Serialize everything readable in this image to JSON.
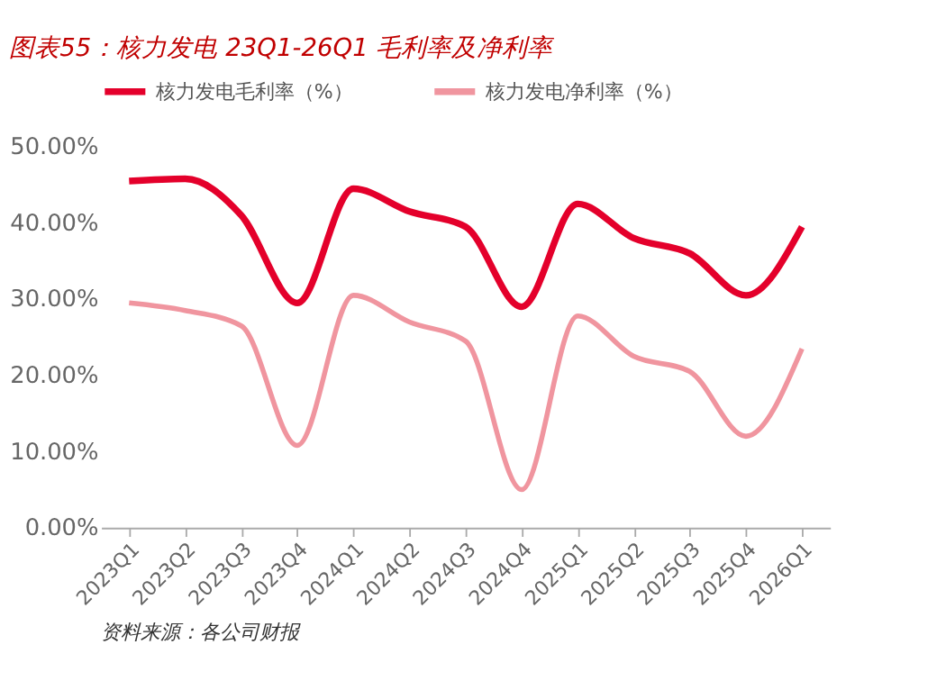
{
  "chart_data": {
    "type": "line",
    "title": "图表55：核力发电 23Q1-26Q1 毛利率及净利率",
    "categories": [
      "2023Q1",
      "2023Q2",
      "2023Q3",
      "2023Q4",
      "2024Q1",
      "2024Q2",
      "2024Q3",
      "2024Q4",
      "2025Q1",
      "2025Q2",
      "2025Q3",
      "2025Q4",
      "2026Q1"
    ],
    "series": [
      {
        "name": "核力发电毛利率（%）",
        "color": "#e4002b",
        "values": [
          45.5,
          45.8,
          41,
          29.5,
          44.5,
          41.5,
          39.5,
          29,
          42.5,
          38,
          36,
          30.5,
          39.5
        ]
      },
      {
        "name": "核力发电净利率（%）",
        "color": "#f0959f",
        "values": [
          29.5,
          28.5,
          26.5,
          10.8,
          30.5,
          27,
          24.5,
          5,
          27.8,
          22.5,
          20.5,
          12,
          23.5
        ]
      }
    ],
    "ylim": [
      0,
      50
    ],
    "yticks": [
      {
        "value": 0,
        "label": "0.00%"
      },
      {
        "value": 10,
        "label": "10.00%"
      },
      {
        "value": 20,
        "label": "20.00%"
      },
      {
        "value": 30,
        "label": "30.00%"
      },
      {
        "value": 40,
        "label": "40.00%"
      },
      {
        "value": 50,
        "label": "50.00%"
      }
    ],
    "grid": false,
    "legend": "top",
    "marker": "none",
    "line_style": "solid",
    "annotations": [
      "资料来源：各公司财报"
    ]
  }
}
